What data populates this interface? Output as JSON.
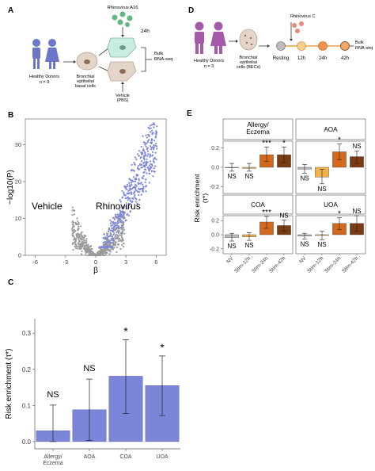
{
  "panels": {
    "A": {
      "letter": "A",
      "virus": "Rhinovirus A16",
      "time": "24h",
      "donors": "Healthy Donors",
      "donors_n": "n = 9",
      "cells_line1": "Bronchial",
      "cells_line2": "epithelial",
      "cells_line3": "basal cells",
      "vehicle": "Vehicle",
      "pbs": "(PBS)",
      "output_line1": "Bulk",
      "output_line2": "RNA-seq"
    },
    "D": {
      "letter": "D",
      "virus": "Rhinovirus C",
      "donors": "Healthy Donors",
      "donors_n": "n = 3",
      "cells_line1": "Bronchial",
      "cells_line2": "epithelial",
      "cells_line3": "cells (BECs)",
      "timeline": [
        "Resting",
        "12h",
        "24h",
        "42h"
      ],
      "output_line1": "Bulk",
      "output_line2": "RNA-seq"
    },
    "B": {
      "letter": "B"
    },
    "C": {
      "letter": "C"
    },
    "E": {
      "letter": "E"
    }
  },
  "colors": {
    "volcano_gray": "#9b9b9b",
    "volcano_blue": "#7b86d8",
    "bar_blue": "#7b86d8",
    "nv": "#bdbdbd",
    "stim12": "#f3b04b",
    "stim24": "#d2691e",
    "stim42": "#7a3a12",
    "person_a": "#6b76c9",
    "person_d": "#a45aa8",
    "virus": "#e8887a",
    "cell": "#d8c6b8",
    "timeline": "#e8a04a"
  },
  "chart_data": [
    {
      "panel": "B",
      "type": "scatter",
      "xlabel": "β",
      "ylabel": "−log10(P)",
      "xlim": [
        -7,
        7
      ],
      "ylim": [
        0,
        37
      ],
      "xticks": [
        -6,
        -3,
        0,
        3,
        6
      ],
      "yticks": [
        0,
        10,
        20,
        30
      ],
      "annotations": [
        "Vehicle",
        "Rhinovirus"
      ],
      "legend": "none"
    },
    {
      "panel": "C",
      "type": "bar",
      "ylabel": "Risk enrichment (τ*)",
      "categories": [
        "Allergy/ Eczema",
        "AOA",
        "COA",
        "UOA"
      ],
      "values": [
        0.03,
        0.088,
        0.181,
        0.155
      ],
      "err_low": [
        0.0,
        0.003,
        0.078,
        0.072
      ],
      "err_high": [
        0.101,
        0.173,
        0.282,
        0.237
      ],
      "significance": [
        "NS",
        "NS",
        "*",
        "*"
      ],
      "ylim": [
        -0.02,
        0.34
      ],
      "yticks": [
        0.0,
        0.1,
        0.2,
        0.3
      ]
    },
    {
      "panel": "E",
      "type": "bar",
      "ylabel": "Risk enrichment (τ*)",
      "categories": [
        "NV",
        "Stim-12h",
        "Stim-24h",
        "Stim-42h"
      ],
      "ylim": [
        -0.27,
        0.27
      ],
      "yticks": [
        -0.2,
        -0.1,
        0.0,
        0.1,
        0.2
      ],
      "facets": [
        {
          "title": "Allergy/ Eczema",
          "values": [
            0.0,
            -0.01,
            0.13,
            0.13
          ],
          "err_low": [
            -0.04,
            -0.04,
            0.06,
            0.05
          ],
          "err_high": [
            0.04,
            0.04,
            0.21,
            0.21
          ],
          "significance": [
            "NS",
            "NS",
            "***",
            "*"
          ]
        },
        {
          "title": "AOA",
          "values": [
            -0.02,
            -0.1,
            0.16,
            0.11
          ],
          "err_low": [
            -0.06,
            -0.17,
            0.08,
            0.04
          ],
          "err_high": [
            0.03,
            -0.02,
            0.24,
            0.17
          ],
          "significance": [
            "NS",
            "NS",
            "*",
            "NS"
          ]
        },
        {
          "title": "COA",
          "values": [
            -0.04,
            -0.03,
            0.18,
            0.13
          ],
          "err_low": [
            -0.09,
            -0.08,
            0.09,
            0.05
          ],
          "err_high": [
            0.02,
            0.03,
            0.26,
            0.21
          ],
          "significance": [
            "NS",
            "NS",
            "***",
            "NS"
          ]
        },
        {
          "title": "UOA",
          "values": [
            -0.02,
            -0.01,
            0.16,
            0.16
          ],
          "err_low": [
            -0.06,
            -0.07,
            0.07,
            0.05
          ],
          "err_high": [
            0.02,
            0.05,
            0.24,
            0.27
          ],
          "significance": [
            "NS",
            "NS",
            "*",
            "NS"
          ]
        }
      ]
    }
  ]
}
